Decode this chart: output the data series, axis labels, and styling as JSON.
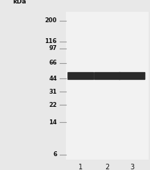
{
  "background_color": "#e8e8e8",
  "gel_background": "#f2f2f2",
  "kda_labels": [
    "200",
    "116",
    "97",
    "66",
    "44",
    "31",
    "22",
    "14",
    "6"
  ],
  "kda_values": [
    200,
    116,
    97,
    66,
    44,
    31,
    22,
    14,
    6
  ],
  "lane_labels": [
    "1",
    "2",
    "3"
  ],
  "band_kda": 47,
  "band_color": "#2a2a2a",
  "marker_line_color": "#999999",
  "marker_label_color": "#111111",
  "fig_width": 2.16,
  "fig_height": 2.45,
  "dpi": 100,
  "log_min": 0.72,
  "log_max": 2.4
}
